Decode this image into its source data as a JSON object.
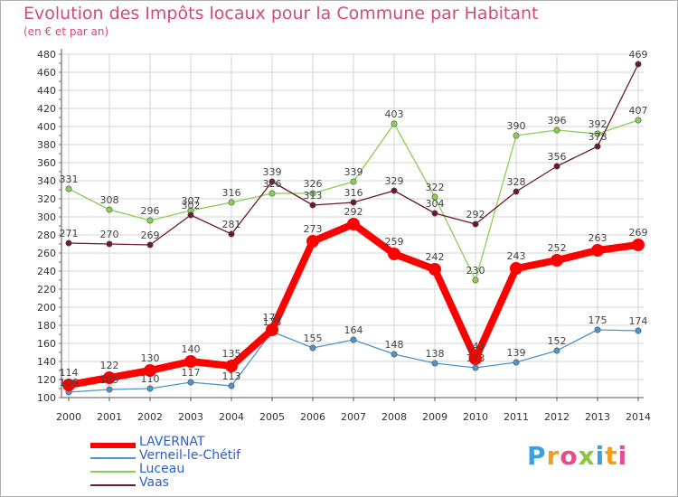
{
  "chart_data": {
    "type": "line",
    "title": "Evolution des Impôts locaux pour la Commune par Habitant",
    "subtitle": "(en € et par an)",
    "xlabel": "",
    "ylabel": "",
    "x": [
      "2000",
      "2001",
      "2002",
      "2003",
      "2004",
      "2005",
      "2006",
      "2007",
      "2008",
      "2009",
      "2010",
      "2011",
      "2012",
      "2013",
      "2014"
    ],
    "yticks": [
      "100",
      "120",
      "140",
      "160",
      "180",
      "200",
      "220",
      "240",
      "260",
      "280",
      "300",
      "320",
      "340",
      "360",
      "380",
      "400",
      "420",
      "440",
      "460",
      "480"
    ],
    "ylim": [
      100,
      480
    ],
    "grid": true,
    "legend_position": "bottom-left",
    "series": [
      {
        "name": "LAVERNAT",
        "color": "#ff0000",
        "emphasis": true,
        "values": [
          114,
          122,
          130,
          140,
          135,
          175,
          273,
          292,
          259,
          242,
          143,
          243,
          252,
          263,
          269
        ]
      },
      {
        "name": "Verneil-le-Chétif",
        "color": "#4d94cc",
        "emphasis": false,
        "values": [
          106,
          109,
          110,
          117,
          113,
          173,
          155,
          164,
          148,
          138,
          133,
          139,
          152,
          175,
          174
        ]
      },
      {
        "name": "Luceau",
        "color": "#88d051",
        "emphasis": false,
        "values": [
          331,
          308,
          296,
          307,
          316,
          326,
          326,
          339,
          403,
          322,
          230,
          390,
          396,
          392,
          407
        ]
      },
      {
        "name": "Vaas",
        "color": "#6b1a2a",
        "emphasis": false,
        "values": [
          271,
          270,
          269,
          302,
          281,
          339,
          313,
          316,
          329,
          304,
          292,
          328,
          356,
          378,
          469
        ]
      }
    ]
  },
  "logo": {
    "letters": [
      "P",
      "r",
      "o",
      "x",
      "i",
      "t",
      "i"
    ],
    "colors": [
      "#3aa0de",
      "#f0a020",
      "#e94b8b",
      "#8cc63f",
      "#3aa0de",
      "#f0a020",
      "#e94b8b"
    ]
  }
}
